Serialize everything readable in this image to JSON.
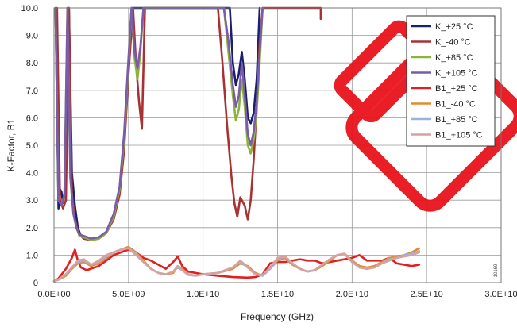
{
  "chart_data": {
    "type": "line",
    "title": "",
    "xlabel": "Frequency (GHz)",
    "ylabel": "K-Factor, B1",
    "xlim": [
      0,
      30000000000
    ],
    "ylim": [
      0,
      10
    ],
    "grid": true,
    "legend_position": "top-right",
    "x_tick_labels": [
      "0.0E+00",
      "5.0E+09",
      "1.0E+10",
      "1.5E+10",
      "2.0E+10",
      "2.5E+10",
      "3.0E+10"
    ],
    "y_tick_labels": [
      "0",
      "1.0",
      "2.0",
      "3.0",
      "4.0",
      "5.0",
      "6.0",
      "7.0",
      "8.0",
      "9.0",
      "10.0"
    ],
    "series": [
      {
        "name": "K_+25 °C",
        "color": "#1a1f6e",
        "x": [
          0.1,
          0.3,
          0.4,
          0.5,
          0.6,
          0.8,
          1.0,
          1.2,
          1.4,
          1.6,
          1.8,
          2.0,
          2.5,
          3.0,
          3.5,
          4.0,
          4.4,
          4.7,
          5.0,
          5.2,
          5.4,
          11.8,
          12.0,
          12.2,
          12.4,
          12.6,
          12.8,
          13.0,
          13.2,
          13.4,
          13.6,
          13.8
        ],
        "y": [
          10,
          2.7,
          3.4,
          3.3,
          2.9,
          3.6,
          10,
          4.0,
          2.8,
          2.0,
          1.7,
          1.6,
          1.55,
          1.6,
          1.8,
          2.4,
          3.4,
          5.2,
          8.0,
          10,
          10,
          10,
          8.0,
          7.2,
          7.6,
          8.4,
          7.4,
          6.0,
          5.8,
          6.2,
          7.4,
          10
        ]
      },
      {
        "name": "K_-40 °C",
        "color": "#a83232",
        "x": [
          0.2,
          0.4,
          0.6,
          0.8,
          1.0,
          1.2,
          1.4,
          1.6,
          1.8,
          2.0,
          2.5,
          3.0,
          3.5,
          4.0,
          4.4,
          4.7,
          5.0,
          5.3,
          5.5,
          5.7,
          5.9,
          6.1,
          11.0,
          11.3,
          11.6,
          11.9,
          12.1,
          12.3,
          12.5,
          12.8,
          13.0,
          13.2,
          13.4,
          13.6,
          13.8,
          14.0,
          14.2,
          17.9,
          17.9
        ],
        "y": [
          10,
          3.0,
          2.7,
          3.0,
          10,
          3.2,
          2.3,
          1.9,
          1.7,
          1.6,
          1.55,
          1.6,
          1.8,
          2.3,
          3.2,
          4.8,
          7.6,
          10,
          8.0,
          6.6,
          5.6,
          10,
          10,
          8.0,
          5.8,
          3.9,
          2.9,
          2.4,
          3.1,
          2.8,
          2.3,
          3.0,
          4.5,
          6.4,
          8.8,
          10,
          10,
          10,
          9.6
        ]
      },
      {
        "name": "K_+85 °C",
        "color": "#8cb43c",
        "x": [
          0.1,
          0.3,
          0.5,
          0.7,
          0.9,
          1.1,
          1.3,
          1.5,
          1.7,
          2.0,
          2.5,
          3.0,
          3.5,
          4.0,
          4.4,
          4.7,
          5.0,
          5.2,
          5.4,
          5.6,
          5.8,
          6.0,
          11.4,
          11.7,
          12.0,
          12.2,
          12.4,
          12.6,
          12.8,
          13.0,
          13.2,
          13.4,
          13.6,
          13.8,
          14.0
        ],
        "y": [
          10,
          3.0,
          2.8,
          3.2,
          10,
          3.8,
          2.5,
          2.0,
          1.7,
          1.65,
          1.55,
          1.6,
          1.8,
          2.4,
          3.4,
          5.2,
          8.0,
          10,
          8.2,
          7.4,
          8.4,
          10,
          10,
          8.4,
          6.8,
          5.9,
          6.3,
          7.4,
          6.4,
          5.0,
          4.7,
          5.2,
          6.2,
          8.0,
          10
        ]
      },
      {
        "name": "K_+105 °C",
        "color": "#7a5ca8",
        "x": [
          0.1,
          0.3,
          0.5,
          0.7,
          0.9,
          1.1,
          1.3,
          1.5,
          1.7,
          2.0,
          2.5,
          3.0,
          3.5,
          4.0,
          4.4,
          4.7,
          5.0,
          5.2,
          5.4,
          5.6,
          5.8,
          6.0,
          11.4,
          11.7,
          12.0,
          12.2,
          12.4,
          12.6,
          12.8,
          13.0,
          13.2,
          13.4,
          13.6,
          13.8,
          14.0
        ],
        "y": [
          10,
          3.0,
          2.8,
          3.2,
          10,
          3.8,
          2.5,
          2.0,
          1.75,
          1.7,
          1.6,
          1.65,
          1.85,
          2.5,
          3.5,
          5.4,
          8.2,
          10,
          8.4,
          7.8,
          8.6,
          10,
          10,
          8.8,
          7.2,
          6.4,
          6.8,
          8.0,
          6.8,
          5.4,
          5.0,
          5.5,
          6.6,
          8.4,
          10
        ]
      },
      {
        "name": "B1_+25 °C",
        "color": "#e02020",
        "x": [
          0,
          0.3,
          0.8,
          1.2,
          1.4,
          1.6,
          1.8,
          2.2,
          3.0,
          3.5,
          4.0,
          4.5,
          5.0,
          5.5,
          6.0,
          6.5,
          7.0,
          7.5,
          8.0,
          8.3,
          8.6,
          9.0,
          10.0,
          11.0,
          12.0,
          13.0,
          13.5,
          14.0,
          14.5,
          15.0,
          15.5,
          16.0,
          16.5,
          17.0,
          17.5,
          18.0,
          18.5,
          19.0,
          19.5,
          20.0,
          20.5,
          21.0,
          22.0,
          22.5,
          23.0,
          23.5,
          24.0,
          24.5
        ],
        "y": [
          0.05,
          0.15,
          0.5,
          0.9,
          1.2,
          0.8,
          0.55,
          0.45,
          0.6,
          0.8,
          1.0,
          1.1,
          1.2,
          1.1,
          0.9,
          0.8,
          0.65,
          0.5,
          0.75,
          0.95,
          0.6,
          0.4,
          0.3,
          0.25,
          0.2,
          0.18,
          0.2,
          0.3,
          0.7,
          0.75,
          0.75,
          0.8,
          0.85,
          0.8,
          0.8,
          0.7,
          0.75,
          0.8,
          0.85,
          0.9,
          1.0,
          0.8,
          0.8,
          0.9,
          0.7,
          0.65,
          0.6,
          0.65
        ]
      },
      {
        "name": "B1_-40 °C",
        "color": "#e08c30",
        "x": [
          0,
          0.3,
          0.8,
          1.2,
          1.6,
          2.0,
          2.5,
          3.0,
          3.5,
          4.0,
          4.5,
          5.0,
          5.5,
          6.0,
          6.5,
          7.0,
          7.5,
          8.0,
          8.3,
          8.6,
          9.0,
          9.5,
          10.0,
          11.0,
          12.0,
          12.5,
          13.0,
          13.5,
          14.0,
          14.5,
          15.0,
          15.5,
          16.0,
          16.5,
          17.0,
          17.5,
          18.0,
          18.5,
          19.0,
          19.5,
          20.0,
          20.5,
          21.0,
          21.5,
          22.0,
          22.5,
          23.0,
          23.5,
          24.0,
          24.5
        ],
        "y": [
          0.05,
          0.1,
          0.25,
          0.5,
          0.7,
          0.75,
          0.6,
          0.7,
          0.9,
          1.1,
          1.2,
          1.3,
          1.1,
          0.8,
          0.5,
          0.35,
          0.3,
          0.35,
          0.6,
          0.5,
          0.3,
          0.25,
          0.3,
          0.35,
          0.5,
          0.7,
          0.6,
          0.35,
          0.25,
          0.5,
          0.8,
          0.9,
          0.65,
          0.5,
          0.4,
          0.45,
          0.6,
          0.8,
          1.0,
          1.05,
          0.8,
          0.6,
          0.55,
          0.6,
          0.75,
          0.9,
          0.95,
          1.0,
          1.1,
          1.25
        ]
      },
      {
        "name": "B1_+85 °C",
        "color": "#9bb3dc",
        "x": [
          0,
          0.3,
          0.8,
          1.2,
          1.6,
          2.0,
          2.5,
          3.0,
          3.5,
          4.0,
          4.5,
          5.0,
          5.5,
          6.0,
          6.5,
          7.0,
          7.5,
          8.0,
          8.3,
          8.6,
          9.0,
          9.5,
          10.0,
          11.0,
          12.0,
          12.5,
          13.0,
          13.5,
          14.0,
          14.5,
          15.0,
          15.5,
          16.0,
          16.5,
          17.0,
          17.5,
          18.0,
          18.5,
          19.0,
          19.5,
          20.0,
          20.5,
          21.0,
          21.5,
          22.0,
          22.5,
          23.0,
          23.5,
          24.0,
          24.5
        ],
        "y": [
          0.05,
          0.1,
          0.3,
          0.55,
          0.75,
          0.8,
          0.65,
          0.75,
          0.95,
          1.1,
          1.2,
          1.25,
          1.05,
          0.75,
          0.5,
          0.35,
          0.3,
          0.4,
          0.55,
          0.45,
          0.28,
          0.25,
          0.3,
          0.35,
          0.55,
          0.75,
          0.55,
          0.3,
          0.25,
          0.5,
          0.85,
          0.95,
          0.7,
          0.5,
          0.4,
          0.45,
          0.65,
          0.85,
          1.0,
          1.05,
          0.75,
          0.55,
          0.5,
          0.55,
          0.7,
          0.85,
          0.9,
          1.0,
          1.05,
          1.15
        ]
      },
      {
        "name": "B1_+105 °C",
        "color": "#d9a0a0",
        "x": [
          0,
          0.3,
          0.8,
          1.2,
          1.6,
          2.0,
          2.5,
          3.0,
          3.5,
          4.0,
          4.5,
          5.0,
          5.5,
          6.0,
          6.5,
          7.0,
          7.5,
          8.0,
          8.3,
          8.6,
          9.0,
          9.5,
          10.0,
          11.0,
          12.0,
          12.5,
          13.0,
          13.5,
          14.0,
          14.5,
          15.0,
          15.5,
          16.0,
          16.5,
          17.0,
          17.5,
          18.0,
          18.5,
          19.0,
          19.5,
          20.0,
          20.5,
          21.0,
          21.5,
          22.0,
          22.5,
          23.0,
          23.5,
          24.0,
          24.5
        ],
        "y": [
          0.05,
          0.12,
          0.3,
          0.55,
          0.8,
          0.85,
          0.65,
          0.8,
          1.0,
          1.1,
          1.2,
          1.25,
          1.0,
          0.75,
          0.5,
          0.35,
          0.3,
          0.4,
          0.6,
          0.45,
          0.3,
          0.25,
          0.3,
          0.35,
          0.55,
          0.8,
          0.55,
          0.3,
          0.28,
          0.55,
          0.9,
          0.95,
          0.7,
          0.5,
          0.4,
          0.45,
          0.65,
          0.85,
          1.0,
          1.05,
          0.75,
          0.55,
          0.5,
          0.55,
          0.7,
          0.8,
          0.9,
          0.95,
          1.0,
          1.1
        ]
      }
    ]
  },
  "figure_id": "10169-",
  "watermark": {
    "color": "#e8121b",
    "icon": "diagonal-stamp-logo"
  }
}
